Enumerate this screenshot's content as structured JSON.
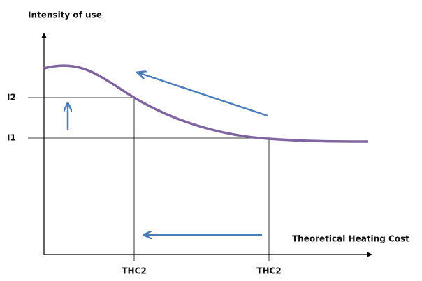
{
  "axes": {
    "y_label": "Intensity of use",
    "x_label": "Theoretical Heating Cost"
  },
  "levels": [
    {
      "label": "I2"
    },
    {
      "label": "I1"
    }
  ],
  "x_markers": [
    {
      "label": "THC2"
    },
    {
      "label": "THC2"
    }
  ]
}
